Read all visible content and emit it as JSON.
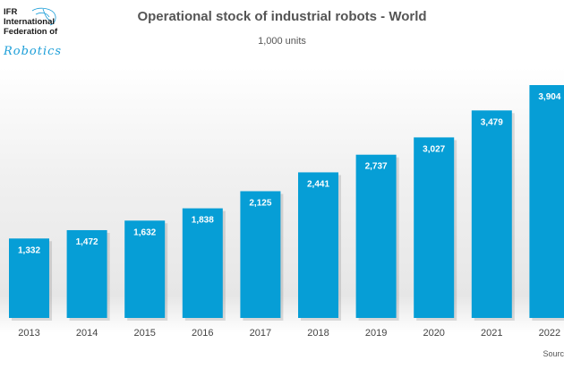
{
  "logo": {
    "line1": "IFR",
    "line2": "International",
    "line3": "Federation of",
    "script": "Robotics",
    "color": "#1b9ed8"
  },
  "chart_data": {
    "type": "bar",
    "title": "Operational stock of industrial robots - World",
    "subtitle": "1,000 units",
    "categories": [
      "2013",
      "2014",
      "2015",
      "2016",
      "2017",
      "2018",
      "2019",
      "2020",
      "2021",
      "2022"
    ],
    "values": [
      1332,
      1472,
      1632,
      1838,
      2125,
      2441,
      2737,
      3027,
      3479,
      3904
    ],
    "value_labels": [
      "1,332",
      "1,472",
      "1,632",
      "1,838",
      "2,125",
      "2,441",
      "2,737",
      "3,027",
      "3,479",
      "3,904"
    ],
    "ylim": [
      0,
      3904
    ],
    "grid": false,
    "bar_color": "#069ed6",
    "label_color": "#ffffff",
    "source_text": "Sourc"
  }
}
